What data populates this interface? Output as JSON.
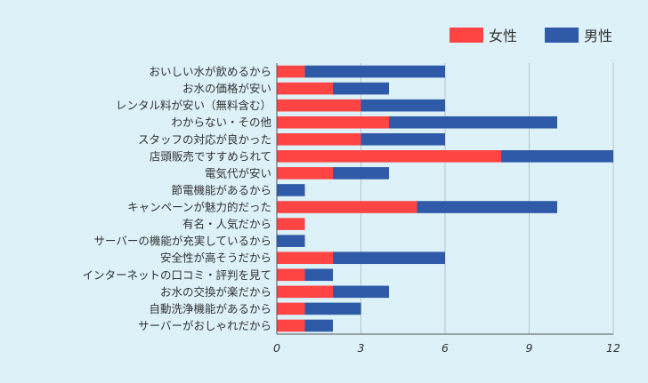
{
  "chart_data": {
    "type": "bar",
    "orientation": "horizontal",
    "stacked": true,
    "categories": [
      "おいしい水が飲めるから",
      "お水の価格が安い",
      "レンタル料が安い（無料含む）",
      "わからない・その他",
      "スタッフの対応が良かった",
      "店頭販売ですすめられて",
      "電気代が安い",
      "節電機能があるから",
      "キャンペーンが魅力的だった",
      "有名・人気だから",
      "サーバーの機能が充実しているから",
      "安全性が高そうだから",
      "インターネットの口コミ・評判を見て",
      "お水の交換が楽だから",
      "自動洗浄機能があるから",
      "サーバーがおしゃれだから"
    ],
    "series": [
      {
        "name": "女性",
        "color": "#ff4444",
        "values": [
          1,
          2,
          3,
          4,
          3,
          8,
          2,
          0,
          5,
          1,
          0,
          2,
          1,
          2,
          1,
          1
        ]
      },
      {
        "name": "男性",
        "color": "#2e5aa7",
        "values": [
          5,
          2,
          3,
          6,
          3,
          4,
          2,
          1,
          5,
          0,
          1,
          4,
          1,
          2,
          2,
          1
        ]
      }
    ],
    "xticks": [
      "0",
      "3",
      "6",
      "9",
      "12"
    ],
    "xlim": [
      0,
      12
    ],
    "grid": true,
    "legend_position": "top-right"
  }
}
